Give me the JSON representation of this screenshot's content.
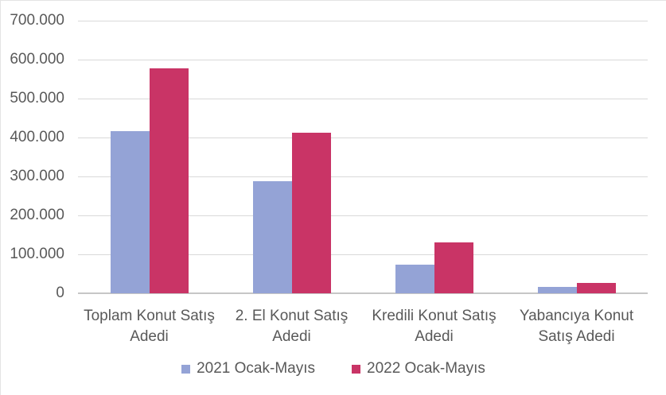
{
  "chart_data": {
    "type": "bar",
    "title": "",
    "xlabel": "",
    "ylabel": "",
    "categories": [
      "Toplam Konut Satış Adedi",
      "2. El Konut Satış Adedi",
      "Kredili Konut Satış Adedi",
      "Yabancıya Konut Satış Adedi"
    ],
    "series": [
      {
        "name": "2021 Ocak-Mayıs",
        "color": "#94A3D6",
        "values": [
          417000,
          288000,
          74000,
          16000
        ]
      },
      {
        "name": "2022 Ocak-Mayıs",
        "color": "#C93466",
        "values": [
          577000,
          412000,
          130000,
          26000
        ]
      }
    ],
    "ylim": [
      0,
      700000
    ],
    "ytick_labels": [
      "0",
      "100.000",
      "200.000",
      "300.000",
      "400.000",
      "500.000",
      "600.000",
      "700.000"
    ],
    "grid": true,
    "legend_position": "bottom",
    "colors": {
      "gridline": "#D9D9D9",
      "axis_line": "#C6C6C6",
      "text": "#595959",
      "background": "#FFFFFF"
    }
  }
}
